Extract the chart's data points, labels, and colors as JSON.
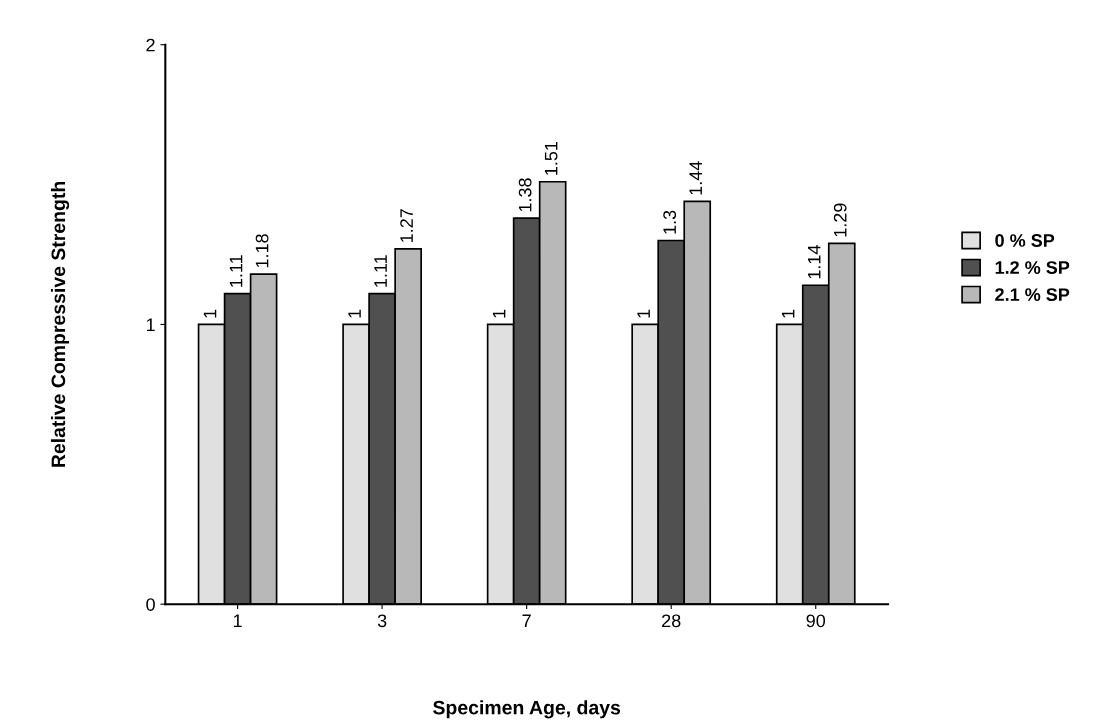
{
  "chart_data": {
    "type": "bar",
    "xlabel": "Specimen Age, days",
    "ylabel": "Relative Compressive Strength",
    "categories": [
      "1",
      "3",
      "7",
      "28",
      "90"
    ],
    "series": [
      {
        "name": "0 % SP",
        "color": "#e0e0e0",
        "values": [
          1,
          1,
          1,
          1,
          1
        ]
      },
      {
        "name": "1.2 % SP",
        "color": "#505050",
        "values": [
          1.11,
          1.11,
          1.38,
          1.3,
          1.14
        ]
      },
      {
        "name": "2.1 % SP",
        "color": "#b8b8b8",
        "values": [
          1.18,
          1.27,
          1.51,
          1.44,
          1.29
        ]
      }
    ],
    "ylim": [
      0,
      2
    ],
    "yticks": [
      0,
      1,
      2
    ],
    "data_labels": true,
    "legend": "right",
    "grid": false
  }
}
